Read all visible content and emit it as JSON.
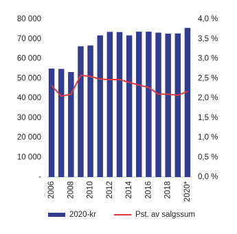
{
  "chart_data": {
    "type": "bar-line",
    "categories": [
      "2006",
      null,
      "2008",
      null,
      "2010",
      null,
      "2012",
      null,
      "2014",
      null,
      "2016",
      null,
      "2018",
      null,
      "2020*"
    ],
    "series": [
      {
        "name": "2020-kr",
        "type": "bar",
        "color": "#333d8f",
        "values": [
          55000,
          54800,
          53200,
          66300,
          66700,
          71800,
          73600,
          73500,
          71800,
          73700,
          73700,
          73200,
          72700,
          72800,
          75600
        ]
      },
      {
        "name": "Pst. av salgssum",
        "type": "line",
        "axis": "y2",
        "color": "#e0393e",
        "values": [
          2.32,
          2.05,
          2.1,
          2.58,
          2.55,
          2.48,
          2.47,
          2.47,
          2.4,
          2.33,
          2.27,
          2.1,
          2.1,
          2.07,
          2.17
        ]
      }
    ],
    "ylim": [
      0,
      80000
    ],
    "yticks": [
      {
        "value": 0,
        "label": "-"
      },
      {
        "value": 10000,
        "label": "10 000"
      },
      {
        "value": 20000,
        "label": "20 000"
      },
      {
        "value": 30000,
        "label": "30 000"
      },
      {
        "value": 40000,
        "label": "40 000"
      },
      {
        "value": 50000,
        "label": "50 000"
      },
      {
        "value": 60000,
        "label": "60 000"
      },
      {
        "value": 70000,
        "label": "70 000"
      },
      {
        "value": 80000,
        "label": "80 000"
      }
    ],
    "y2lim": [
      0,
      4
    ],
    "y2ticks": [
      {
        "value": 0,
        "label": "0,0 %"
      },
      {
        "value": 0.5,
        "label": "0,5 %"
      },
      {
        "value": 1,
        "label": "1,0 %"
      },
      {
        "value": 1.5,
        "label": "1,5 %"
      },
      {
        "value": 2,
        "label": "2,0 %"
      },
      {
        "value": 2.5,
        "label": "2,5 %"
      },
      {
        "value": 3,
        "label": "3,0 %"
      },
      {
        "value": 3.5,
        "label": "3,5 %"
      },
      {
        "value": 4,
        "label": "4,0 %"
      }
    ],
    "grid": false,
    "legend": "bottom"
  }
}
